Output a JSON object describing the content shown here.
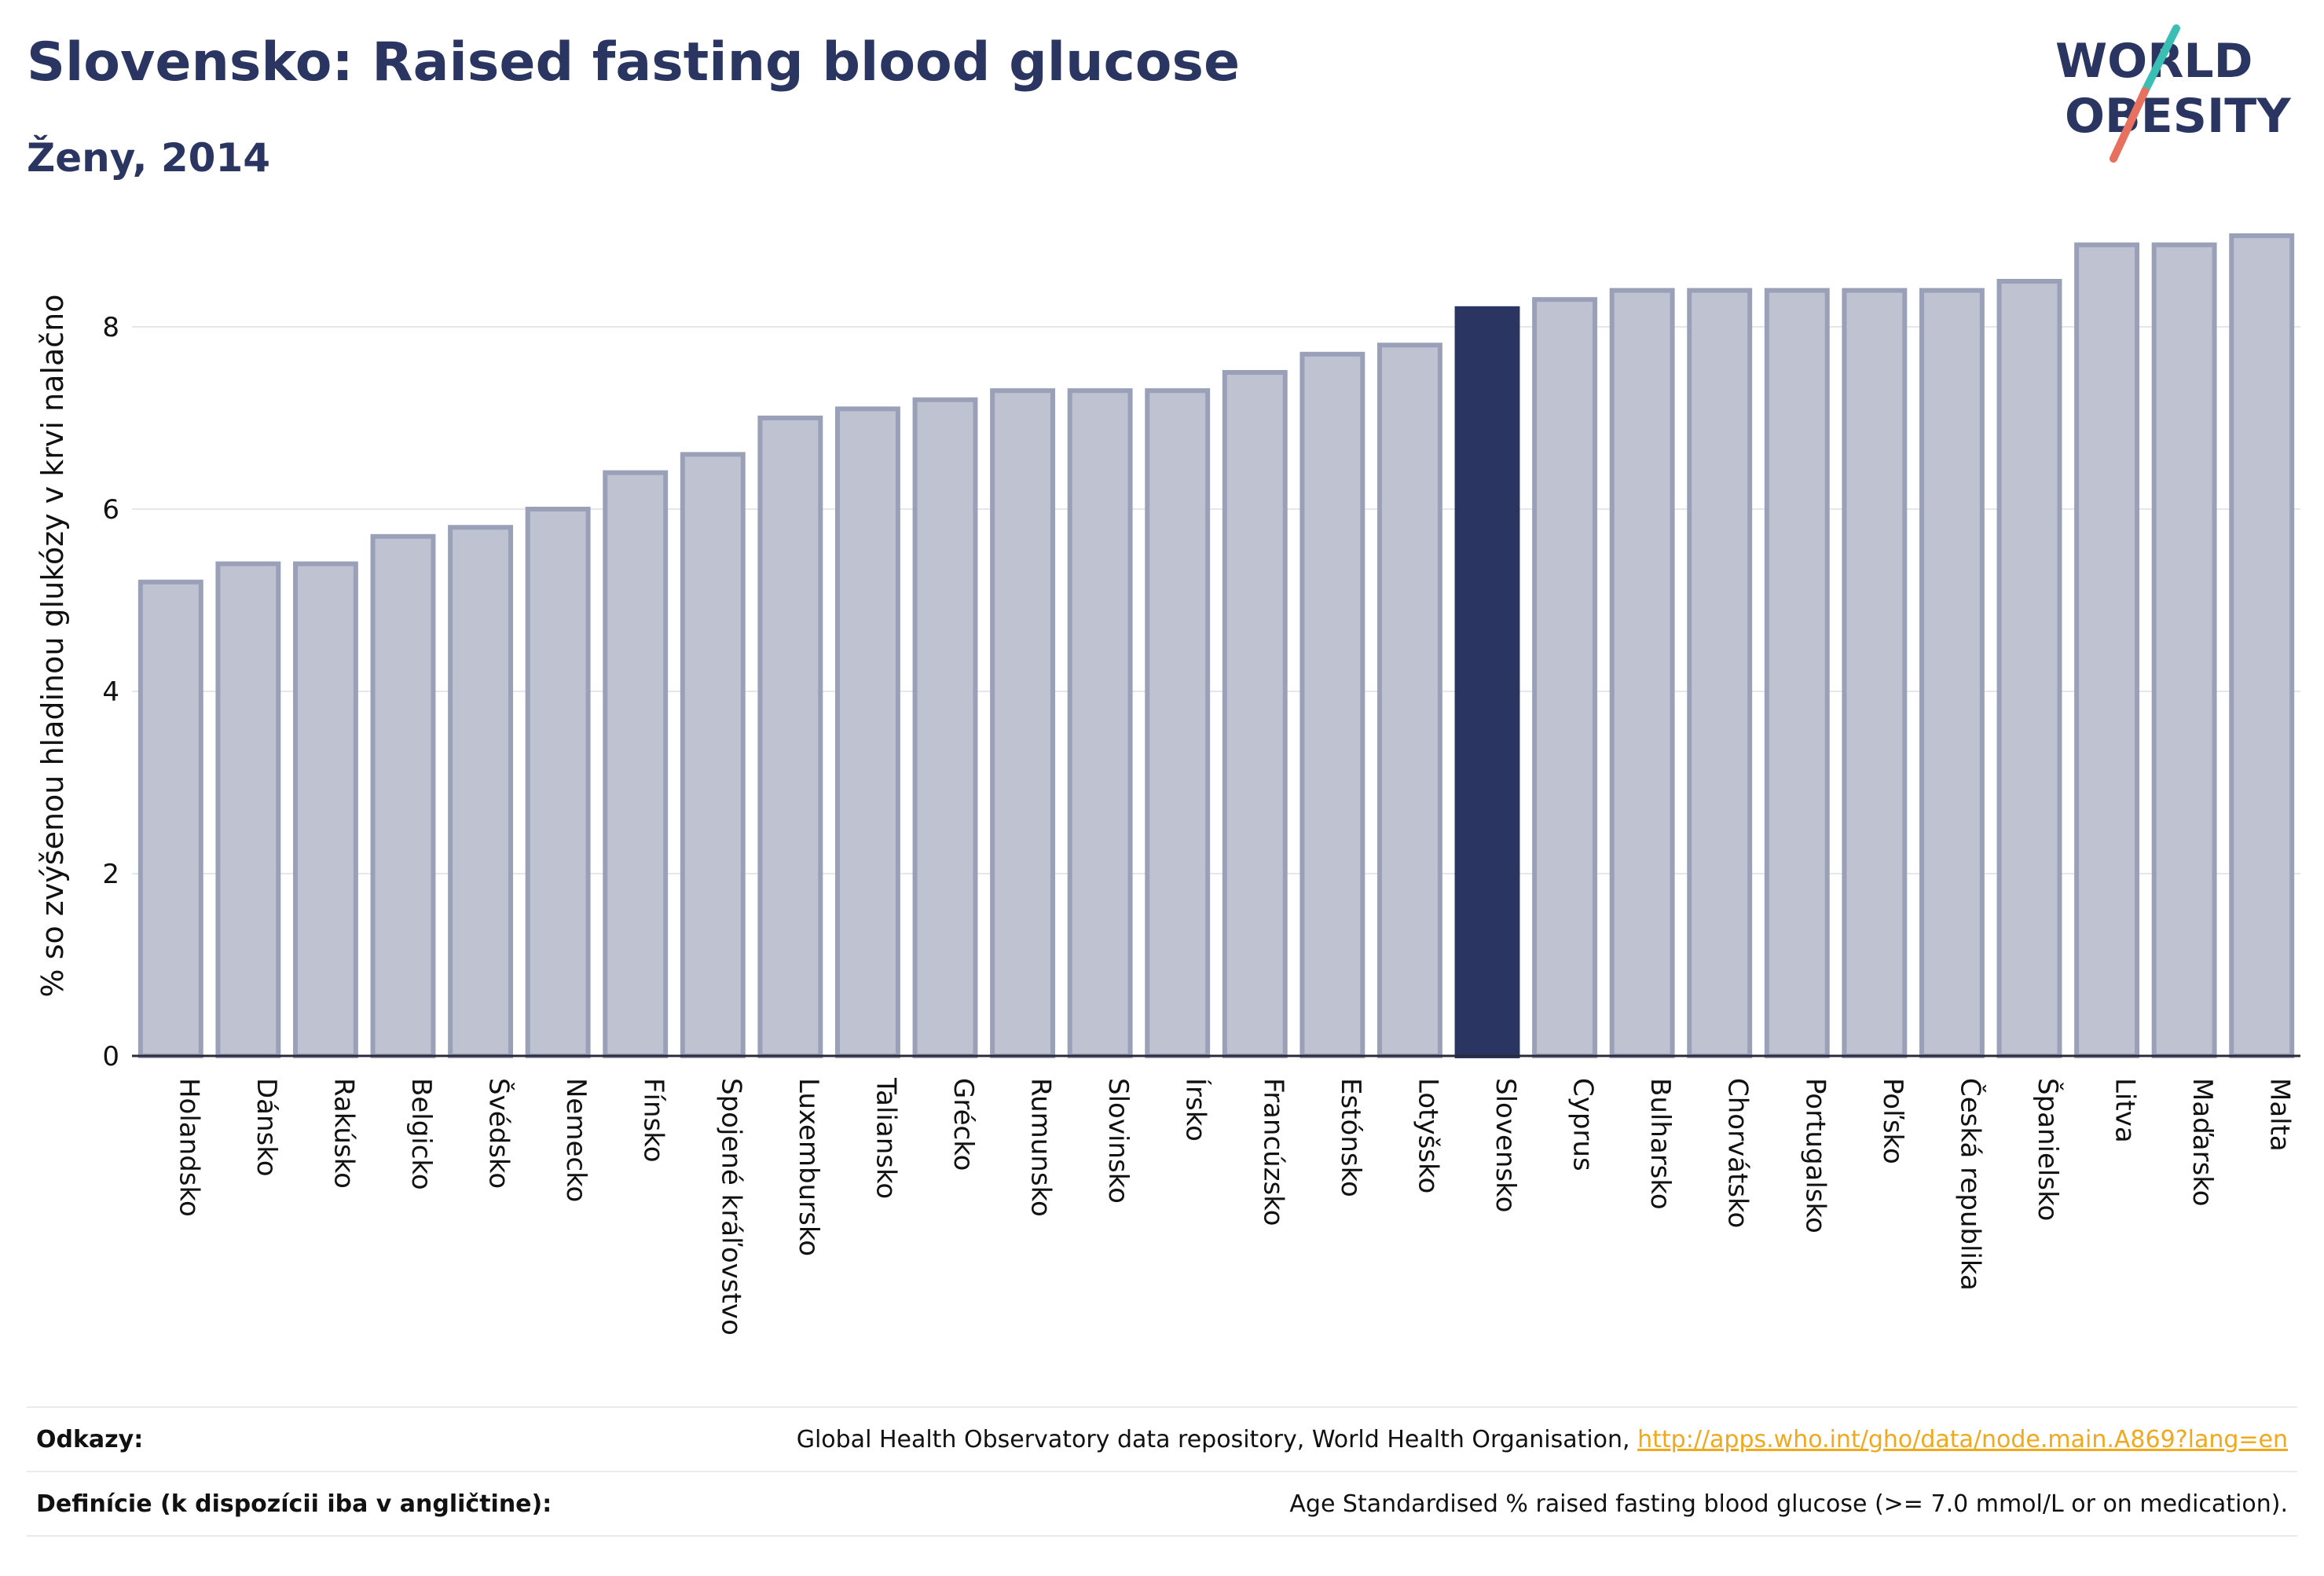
{
  "header": {
    "title": "Slovensko: Raised fasting blood glucose",
    "subtitle": "Ženy, 2014"
  },
  "logo": {
    "line1": "WORLD",
    "line2": "OBESITY",
    "accent_teal": "#3bbfb4",
    "accent_coral": "#e8705f",
    "text_color": "#2a3561"
  },
  "colors": {
    "highlight_bar": "#2a3561",
    "bar_fill": "#bfc3d1",
    "bar_border": "#9aa0b8",
    "grid": "#e6e6ee"
  },
  "chart_data": {
    "type": "bar",
    "ylabel": "% so zvýšenou hladinou glukózy v krvi nalačno",
    "ylim": [
      0,
      9
    ],
    "yticks": [
      0,
      2,
      4,
      6,
      8
    ],
    "grid": true,
    "highlight": "Slovensko",
    "categories": [
      "Holandsko",
      "Dánsko",
      "Rakúsko",
      "Belgicko",
      "Švédsko",
      "Nemecko",
      "Fínsko",
      "Spojené kráľovstvo",
      "Luxembursko",
      "Taliansko",
      "Grécko",
      "Rumunsko",
      "Slovinsko",
      "Írsko",
      "Francúzsko",
      "Estónsko",
      "Lotyšsko",
      "Slovensko",
      "Cyprus",
      "Bulharsko",
      "Chorvátsko",
      "Portugalsko",
      "Poľsko",
      "Česká republika",
      "Španielsko",
      "Litva",
      "Maďarsko",
      "Malta"
    ],
    "values": [
      5.2,
      5.4,
      5.4,
      5.7,
      5.8,
      6.0,
      6.4,
      6.6,
      7.0,
      7.1,
      7.2,
      7.3,
      7.3,
      7.3,
      7.5,
      7.7,
      7.8,
      8.2,
      8.3,
      8.4,
      8.4,
      8.4,
      8.4,
      8.4,
      8.5,
      8.9,
      8.9,
      9.0
    ]
  },
  "footer": {
    "references_label": "Odkazy:",
    "references_text": "Global Health Observatory data repository, World Health Organisation,",
    "references_link": "http://apps.who.int/gho/data/node.main.A869?lang=en",
    "definitions_label": "Definície (k dispozícii iba v angličtine):",
    "definitions_text": "Age Standardised % raised fasting blood glucose (>= 7.0 mmol/L or on medication)."
  }
}
